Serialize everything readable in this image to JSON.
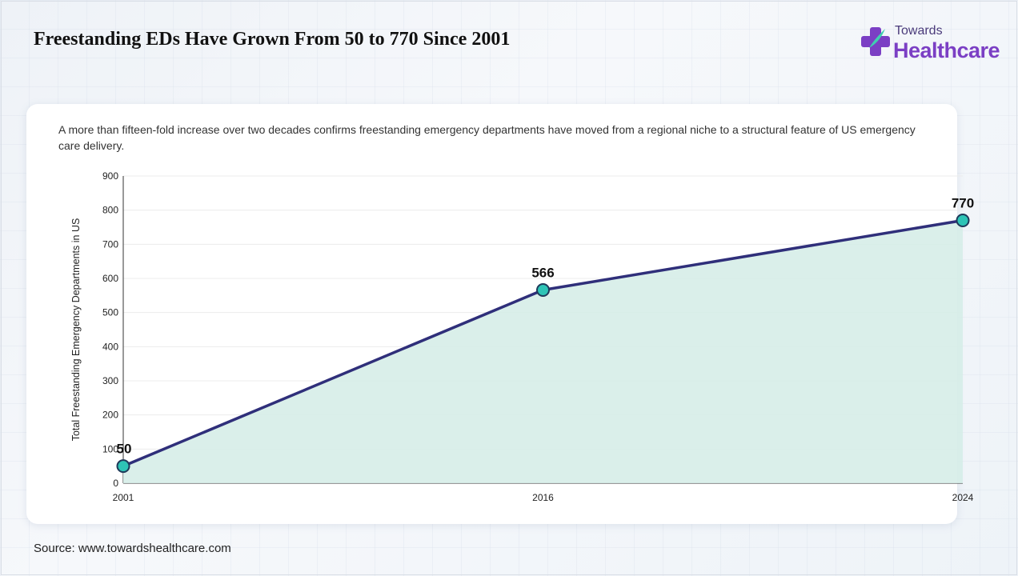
{
  "title": "Freestanding EDs Have Grown From 50 to 770 Since 2001",
  "logo": {
    "small": "Towards",
    "big": "Healthcare"
  },
  "subtitle": "A more than fifteen-fold increase over two decades confirms freestanding emergency departments have moved from a regional niche to a structural feature of US emergency care delivery.",
  "source": "Source: www.towardshealthcare.com",
  "colors": {
    "line": "#2f2f7a",
    "area": "#d6ede8",
    "marker": "#2ec4b6",
    "markerStroke": "#1f3a5a",
    "grid": "#ececec"
  },
  "chart_data": {
    "type": "area",
    "categories": [
      "2001",
      "2016",
      "2024"
    ],
    "values": [
      50,
      566,
      770
    ],
    "data_labels": [
      "50",
      "566",
      "770"
    ],
    "ylabel": "Total Freestanding Emergency Departments in US",
    "xlabel": "",
    "ylim": [
      0,
      900
    ],
    "yticks": [
      "0",
      "100",
      "200",
      "300",
      "400",
      "500",
      "600",
      "700",
      "800",
      "900"
    ],
    "grid": true,
    "legend": "none"
  }
}
